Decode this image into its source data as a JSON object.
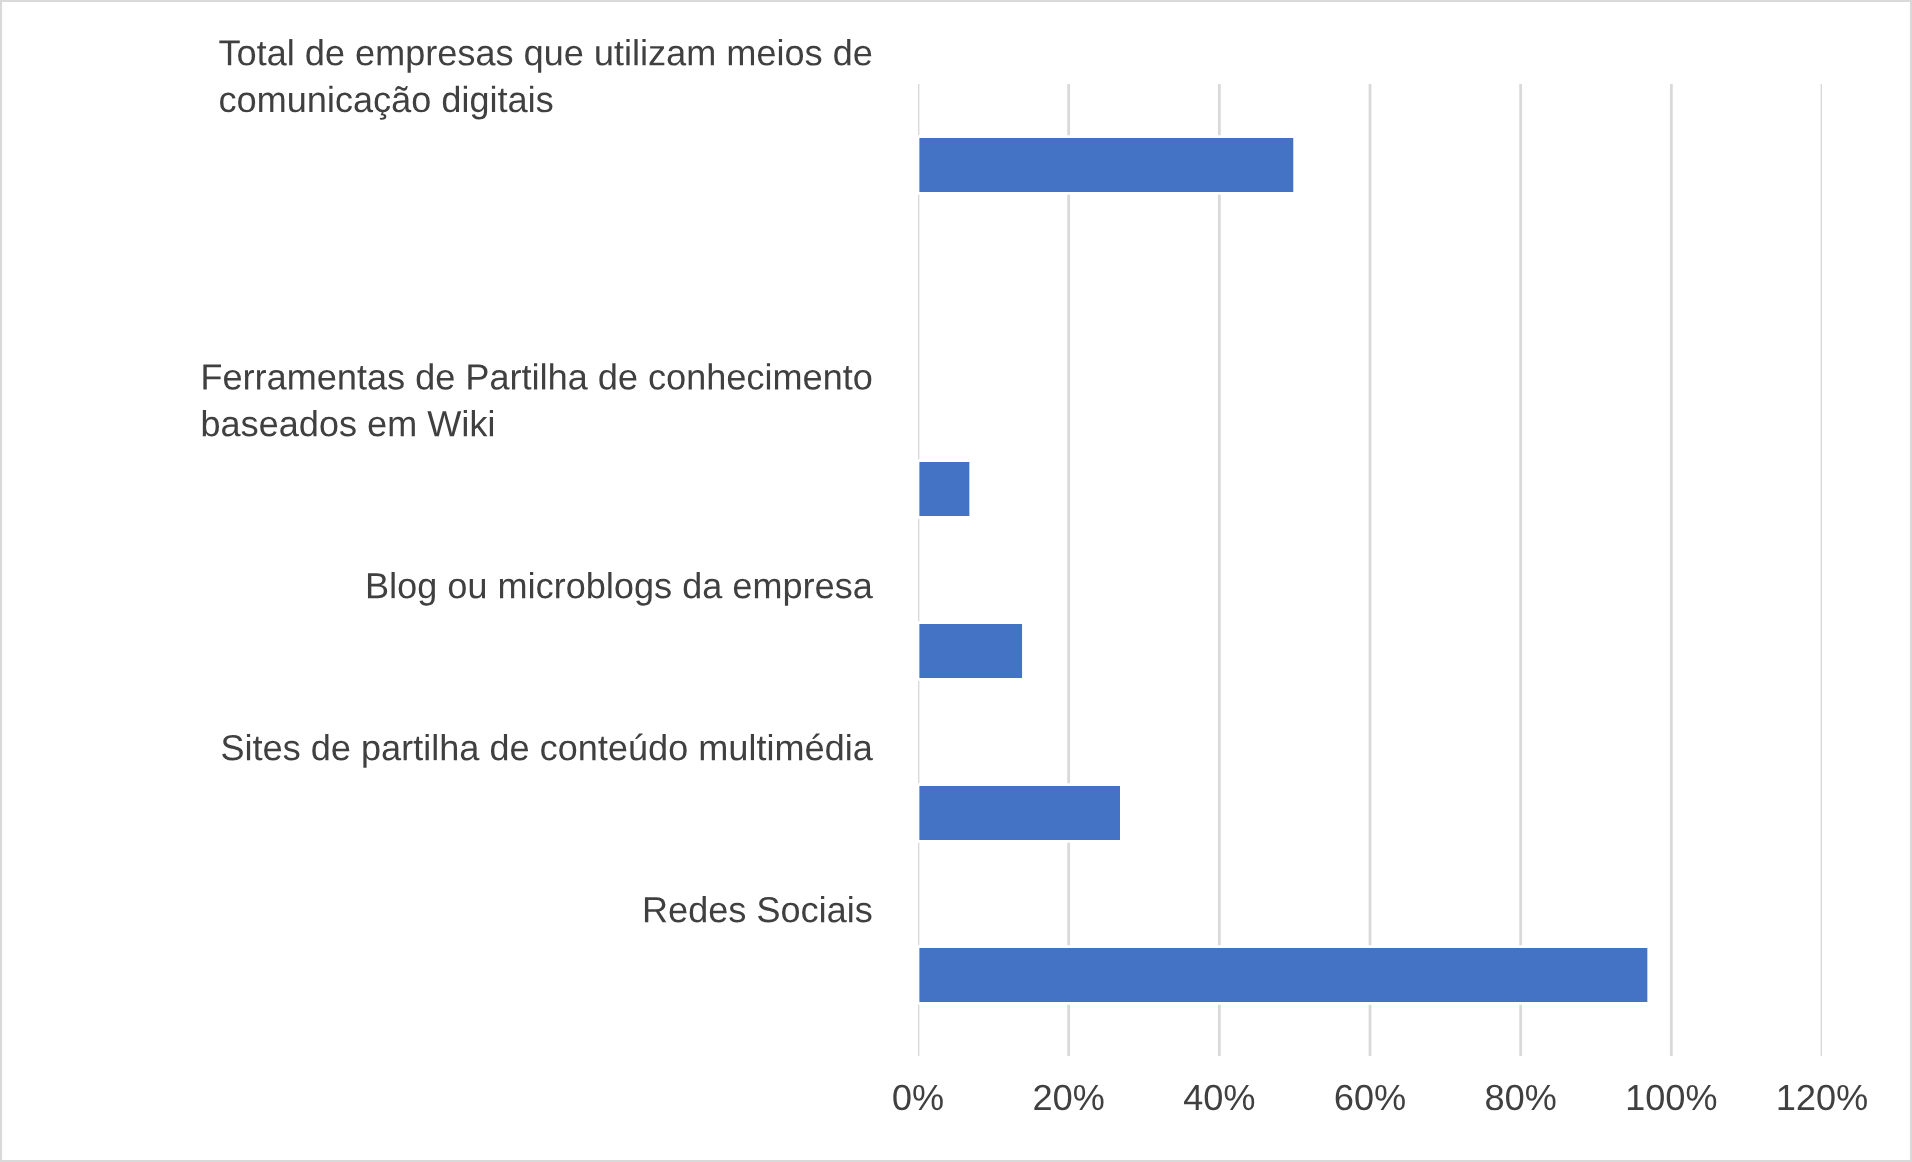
{
  "chart_data": {
    "type": "bar",
    "orientation": "horizontal",
    "categories": [
      "Total de empresas que utilizam meios de\ncomunicação digitais",
      null,
      "Ferramentas de Partilha de conhecimento\nbaseados em Wiki",
      "Blog ou microblogs da empresa",
      "Sites de partilha de conteúdo multimédia",
      "Redes Sociais"
    ],
    "values": [
      50,
      null,
      7,
      14,
      27,
      97
    ],
    "color": "#4472c4",
    "xlim": [
      0,
      120
    ],
    "xticks": [
      {
        "value": 0,
        "label": "0%"
      },
      {
        "value": 20,
        "label": "20%"
      },
      {
        "value": 40,
        "label": "40%"
      },
      {
        "value": 60,
        "label": "60%"
      },
      {
        "value": 80,
        "label": "80%"
      },
      {
        "value": 100,
        "label": "100%"
      },
      {
        "value": 120,
        "label": "120%"
      }
    ],
    "grid": "x"
  }
}
